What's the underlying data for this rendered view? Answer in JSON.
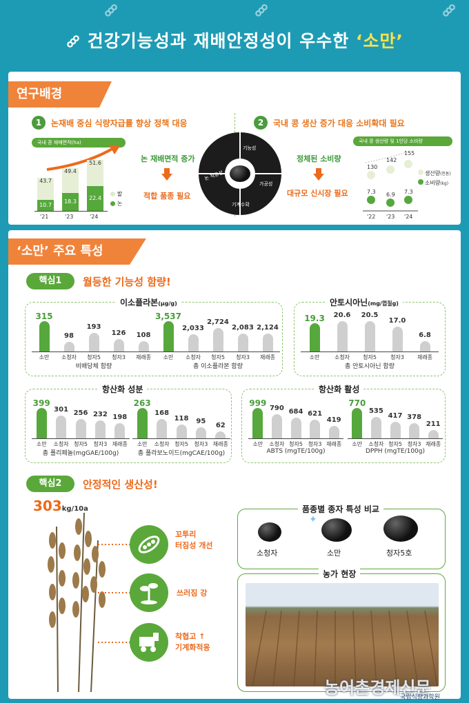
{
  "title": {
    "main": "건강기능성과 재배안정성이 우수한 ",
    "highlight": "‘소만’"
  },
  "section1": {
    "tag": "연구배경",
    "item1": {
      "num": "1",
      "text": "논재배 중심 식량자급률 향상 정책 대응"
    },
    "item2": {
      "num": "2",
      "text": "국내 콩 생산 증가 대응 소비확대 필요"
    },
    "chart1": {
      "header": "국내 콩 재배면적(ha)",
      "years": [
        "'21",
        "'23",
        "'24"
      ],
      "upper": [
        "43.7",
        "49.4",
        "51.6"
      ],
      "lower": [
        "10.7",
        "18.3",
        "22.4"
      ],
      "legend_upper": "밭",
      "legend_lower": "논"
    },
    "mid1": "논 재배면적 증가",
    "mid1b": "적합 품종 필요",
    "mid2": "정체된 소비량",
    "mid2b": "대규모 신시장 필요",
    "circle": {
      "a": "기능성",
      "b": "논 적응성",
      "c": "가공성",
      "d": "기계수확"
    },
    "chart2": {
      "header": "국내 콩 생산량 및 1인당 소비량",
      "years": [
        "'22",
        "'23",
        "'24"
      ],
      "prod": [
        "130",
        "142",
        "155"
      ],
      "cons": [
        "7.3",
        "6.9",
        "7.3"
      ],
      "legend_prod": "생산량",
      "legend_prod_unit": "(천톤)",
      "legend_cons": "소비량",
      "legend_cons_unit": "(kg)"
    }
  },
  "section2": {
    "tag": "‘소만’ 주요 특성",
    "core1": {
      "pill": "핵심1",
      "text": "월등한 기능성 함량!"
    },
    "iso": {
      "title": "이소플라본",
      "unit": "(μg/g)",
      "g1": {
        "cats": [
          "소만",
          "소청자",
          "청자5",
          "청자3",
          "재래종"
        ],
        "vals": [
          "315",
          "98",
          "193",
          "126",
          "108"
        ],
        "sub": "비배당체 함량"
      },
      "g2": {
        "cats": [
          "소만",
          "소청자",
          "청자5",
          "청자3",
          "재래종"
        ],
        "vals": [
          "3,537",
          "2,033",
          "2,724",
          "2,083",
          "2,124"
        ],
        "sub": "총 이소플라본 함량"
      }
    },
    "antho": {
      "title": "안토시아닌",
      "unit": "(mg/껍질g)",
      "cats": [
        "소만",
        "소청자",
        "청자5",
        "청자3",
        "재래종"
      ],
      "vals": [
        "19.3",
        "20.6",
        "20.5",
        "17.0",
        "6.8"
      ],
      "sub": "총 안토시아닌 함량"
    },
    "anti": {
      "title": "항산화 성분",
      "g1": {
        "cats": [
          "소만",
          "소청자",
          "청자5",
          "청자3",
          "재래종"
        ],
        "vals": [
          "399",
          "301",
          "256",
          "232",
          "198"
        ],
        "sub": "총 폴리페놀(mgGAE/100g)"
      },
      "g2": {
        "cats": [
          "소만",
          "소청자",
          "청자5",
          "청자3",
          "재래종"
        ],
        "vals": [
          "263",
          "168",
          "118",
          "95",
          "62"
        ],
        "sub": "총 플라보노이드(mgCAE/100g)"
      }
    },
    "act": {
      "title": "항산화 활성",
      "g1": {
        "cats": [
          "소만",
          "소청자",
          "청자5",
          "청자3",
          "재래종"
        ],
        "vals": [
          "999",
          "790",
          "684",
          "621",
          "419"
        ],
        "sub": "ABTS (mgTE/100g)"
      },
      "g2": {
        "cats": [
          "소만",
          "소청자",
          "청자5",
          "청자3",
          "재래종"
        ],
        "vals": [
          "770",
          "535",
          "417",
          "378",
          "211"
        ],
        "sub": "DPPH (mgTE/100g)"
      }
    },
    "core2": {
      "pill": "핵심2",
      "text": "안정적인 생산성!"
    },
    "yield": {
      "num": "303",
      "unit": "kg/10a"
    },
    "features": [
      {
        "label": "꼬투리\n터짐성 개선"
      },
      {
        "label": "쓰러짐 강"
      },
      {
        "label": "착협고 ↑\n기계화적응"
      }
    ],
    "compare": {
      "title": "품종별 종자 특성 비교",
      "names": [
        "소청자",
        "소만",
        "청자5호"
      ]
    },
    "farm": {
      "title": "농가 현장"
    }
  },
  "watermark": "농어촌경제신문",
  "logo_text": "국립식량과학원",
  "colors": {
    "bg": "#1e9bb4",
    "orange": "#f0833a",
    "green": "#56a83c"
  }
}
